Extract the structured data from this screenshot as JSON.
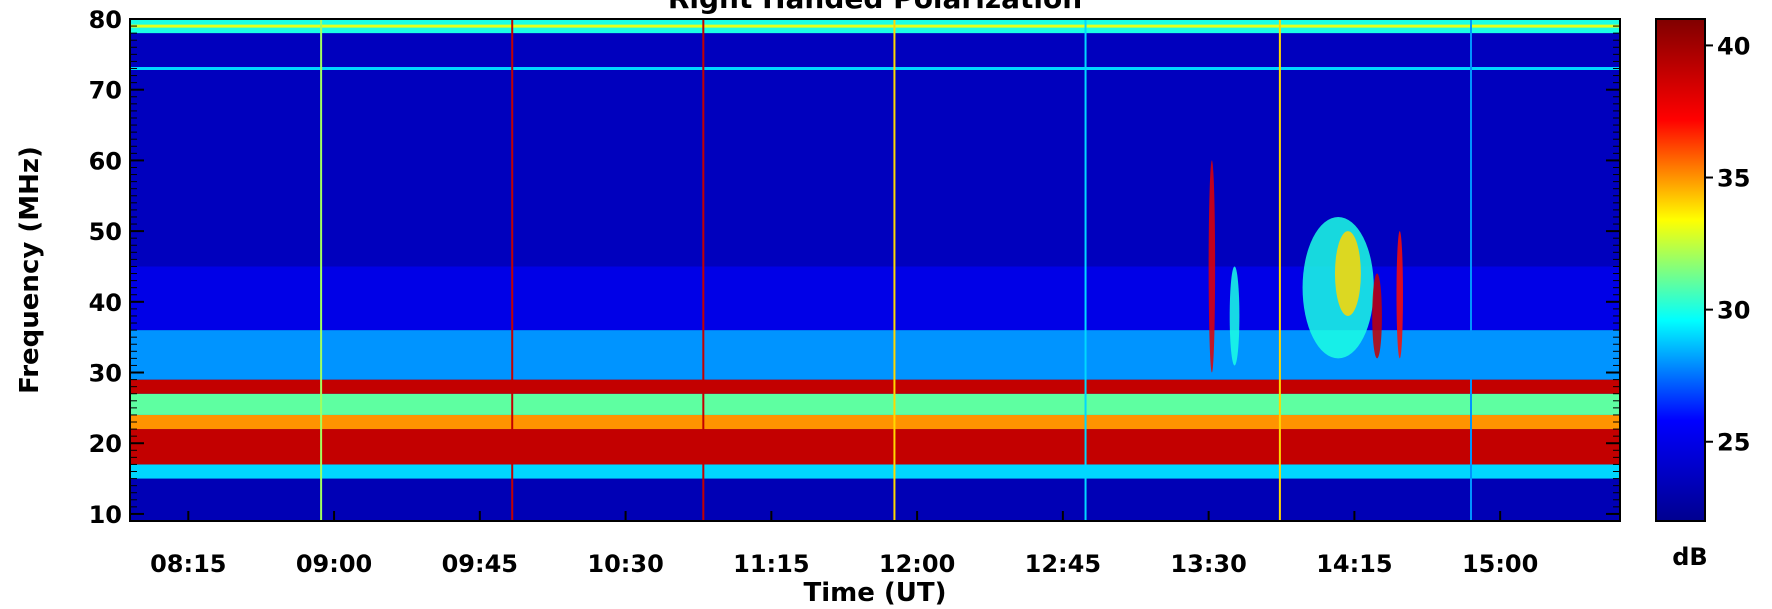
{
  "chart_data": {
    "type": "heatmap",
    "title": "Right Handed Polarization",
    "xlabel": "Time (UT)",
    "ylabel": "Frequency (MHz)",
    "colorbar_label": "dB",
    "x_tick_labels": [
      "08:15",
      "09:00",
      "09:45",
      "10:30",
      "11:15",
      "12:00",
      "12:45",
      "13:30",
      "14:15",
      "15:00"
    ],
    "x_tick_values_min": [
      495,
      540,
      585,
      630,
      675,
      720,
      765,
      810,
      855,
      900
    ],
    "xlim_min": [
      477,
      937
    ],
    "y_ticks": [
      10,
      20,
      30,
      40,
      50,
      60,
      70,
      80
    ],
    "ylim": [
      9,
      80
    ],
    "colorbar_ticks": [
      25,
      30,
      35,
      40
    ],
    "color_range": [
      22,
      41
    ],
    "colormap": [
      "#00008f",
      "#0000ff",
      "#00ffff",
      "#ffff00",
      "#ff0000",
      "#800000"
    ],
    "bands": [
      {
        "f0": 9,
        "f1": 15,
        "level": 23.3
      },
      {
        "f0": 15,
        "f1": 17,
        "level": 29
      },
      {
        "f0": 17,
        "f1": 22,
        "level": 39
      },
      {
        "f0": 22,
        "f1": 24,
        "level": 35
      },
      {
        "f0": 24,
        "f1": 27,
        "level": 31
      },
      {
        "f0": 27,
        "f1": 29,
        "level": 39
      },
      {
        "f0": 29,
        "f1": 36,
        "level": 28
      },
      {
        "f0": 36,
        "f1": 45,
        "level": 25
      },
      {
        "f0": 45,
        "f1": 78,
        "level": 23.6
      },
      {
        "f0": 78,
        "f1": 80,
        "level": 30
      }
    ],
    "vertical_lines_min": [
      {
        "t": 536,
        "level": 32
      },
      {
        "t": 595,
        "level": 39
      },
      {
        "t": 654,
        "level": 39
      },
      {
        "t": 713,
        "level": 34
      },
      {
        "t": 772,
        "level": 29
      },
      {
        "t": 832,
        "level": 34
      },
      {
        "t": 891,
        "level": 28
      }
    ],
    "horizontal_lines": [
      {
        "f": 73,
        "level": 29
      },
      {
        "f": 79,
        "level": 33
      }
    ],
    "bursts": [
      {
        "t": 811,
        "f": 45,
        "width_min": 2,
        "height_mhz": 30,
        "level": 38
      },
      {
        "t": 818,
        "f": 38,
        "width_min": 3,
        "height_mhz": 14,
        "level": 30
      },
      {
        "t": 850,
        "f": 42,
        "width_min": 22,
        "height_mhz": 20,
        "level": 30
      },
      {
        "t": 853,
        "f": 44,
        "width_min": 8,
        "height_mhz": 12,
        "level": 34
      },
      {
        "t": 862,
        "f": 38,
        "width_min": 3,
        "height_mhz": 12,
        "level": 39
      },
      {
        "t": 869,
        "f": 41,
        "width_min": 2,
        "height_mhz": 18,
        "level": 37
      }
    ]
  }
}
